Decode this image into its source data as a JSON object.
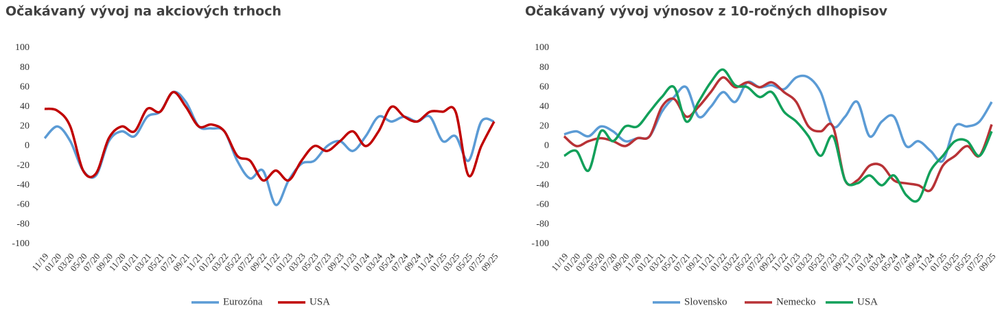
{
  "chart_data": [
    {
      "type": "line",
      "title": "Očakávaný vývoj na akciových trhoch",
      "categories": [
        "11/19",
        "01/20",
        "03/20",
        "05/20",
        "07/20",
        "09/20",
        "11/20",
        "01/21",
        "03/21",
        "05/21",
        "07/21",
        "09/21",
        "11/21",
        "01/22",
        "03/22",
        "05/22",
        "07/22",
        "09/22",
        "11/22",
        "01/23",
        "03/23",
        "05/23",
        "07/23",
        "09/23",
        "11/23",
        "01/24",
        "03/24",
        "05/24",
        "07/24",
        "09/24",
        "11/24",
        "01/25",
        "03/25",
        "05/25",
        "07/25",
        "09/25"
      ],
      "series": [
        {
          "name": "Eurozóna",
          "color": "#5b9bd5",
          "values": [
            8,
            20,
            5,
            -25,
            -30,
            5,
            15,
            10,
            30,
            35,
            55,
            45,
            20,
            18,
            15,
            -15,
            -33,
            -25,
            -60,
            -35,
            -18,
            -15,
            0,
            5,
            -5,
            10,
            30,
            25,
            30,
            25,
            30,
            5,
            10,
            -15,
            25,
            25
          ]
        },
        {
          "name": "USA",
          "color": "#c00000",
          "values": [
            38,
            36,
            20,
            -25,
            -28,
            8,
            20,
            15,
            38,
            35,
            55,
            40,
            20,
            22,
            15,
            -10,
            -15,
            -35,
            -25,
            -35,
            -15,
            0,
            -5,
            5,
            15,
            0,
            15,
            40,
            30,
            25,
            35,
            35,
            35,
            -30,
            0,
            25
          ]
        }
      ],
      "ylim": [
        -100,
        100
      ],
      "yticks": [
        -100,
        -80,
        -60,
        -40,
        -20,
        0,
        20,
        40,
        60,
        80,
        100
      ]
    },
    {
      "type": "line",
      "title": "Očakávaný vývoj výnosov z 10-ročných dlhopisov",
      "categories": [
        "11/19",
        "01/20",
        "03/20",
        "05/20",
        "07/20",
        "09/20",
        "11/20",
        "01/21",
        "03/21",
        "05/21",
        "07/21",
        "09/21",
        "11/21",
        "01/22",
        "03/22",
        "05/22",
        "07/22",
        "09/22",
        "11/22",
        "01/23",
        "03/23",
        "05/23",
        "07/23",
        "09/23",
        "11/23",
        "01/24",
        "03/24",
        "05/24",
        "07/24",
        "09/24",
        "11/24",
        "01/25",
        "03/25",
        "05/25",
        "07/25",
        "09/25"
      ],
      "series": [
        {
          "name": "Slovensko",
          "color": "#5b9bd5",
          "values": [
            12,
            15,
            10,
            20,
            15,
            5,
            8,
            10,
            35,
            50,
            60,
            30,
            40,
            55,
            45,
            65,
            60,
            62,
            58,
            70,
            70,
            55,
            20,
            30,
            45,
            10,
            25,
            30,
            0,
            5,
            -5,
            -15,
            20,
            20,
            25,
            45
          ]
        },
        {
          "name": "Nemecko",
          "color": "#b83236",
          "values": [
            10,
            0,
            5,
            8,
            5,
            0,
            8,
            10,
            40,
            48,
            30,
            40,
            55,
            70,
            60,
            65,
            60,
            65,
            55,
            45,
            20,
            15,
            20,
            -35,
            -35,
            -20,
            -20,
            -35,
            -38,
            -40,
            -45,
            -20,
            -10,
            0,
            -10,
            22
          ]
        },
        {
          "name": "USA",
          "color": "#12a05a",
          "values": [
            -10,
            -5,
            -25,
            15,
            5,
            20,
            20,
            35,
            50,
            60,
            25,
            45,
            65,
            78,
            62,
            60,
            50,
            55,
            35,
            25,
            10,
            -10,
            10,
            -35,
            -38,
            -30,
            -40,
            -30,
            -50,
            -55,
            -25,
            -10,
            5,
            5,
            -10,
            15
          ]
        }
      ],
      "ylim": [
        -100,
        100
      ],
      "yticks": [
        -100,
        -80,
        -60,
        -40,
        -20,
        0,
        20,
        40,
        60,
        80,
        100
      ]
    }
  ]
}
